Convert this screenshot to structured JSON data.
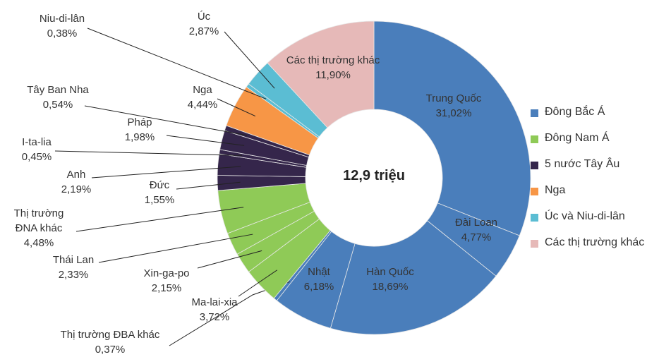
{
  "chart_data": {
    "type": "donut",
    "center_label": "12,9 triệu",
    "categories": [
      "Trung Quốc",
      "Đài Loan",
      "Hàn Quốc",
      "Nhật",
      "Thị trường ĐBA khác",
      "Ma-lai-xia",
      "Xin-ga-po",
      "Thái Lan",
      "Thị trường ĐNA khác",
      "Đức",
      "Anh",
      "I-ta-lia",
      "Pháp",
      "Tây Ban Nha",
      "Nga",
      "Niu-di-lân",
      "Úc",
      "Các thị trường khác"
    ],
    "values": [
      31.02,
      4.77,
      18.69,
      6.18,
      0.37,
      3.72,
      2.15,
      2.33,
      4.48,
      1.55,
      2.19,
      0.45,
      1.98,
      0.54,
      4.44,
      0.38,
      2.87,
      11.9
    ],
    "value_labels": [
      "31,02%",
      "4,77%",
      "18,69%",
      "6,18%",
      "0,37%",
      "3,72%",
      "2,15%",
      "2,33%",
      "4,48%",
      "1,55%",
      "2,19%",
      "0,45%",
      "1,98%",
      "0,54%",
      "4,44%",
      "0,38%",
      "2,87%",
      "11,90%"
    ],
    "category_group": [
      0,
      0,
      0,
      0,
      0,
      1,
      1,
      1,
      1,
      2,
      2,
      2,
      2,
      2,
      3,
      4,
      4,
      5
    ],
    "legend": [
      {
        "name": "Đông Bắc Á",
        "color": "#4a7ebb"
      },
      {
        "name": "Đông Nam Á",
        "color": "#8fca57"
      },
      {
        "name": "5 nước Tây Âu",
        "color": "#35264b"
      },
      {
        "name": "Nga",
        "color": "#f79646"
      },
      {
        "name": "Úc và Niu-di-lân",
        "color": "#5bbdd3"
      },
      {
        "name": "Các thị trường khác",
        "color": "#e6b9b8"
      }
    ]
  }
}
